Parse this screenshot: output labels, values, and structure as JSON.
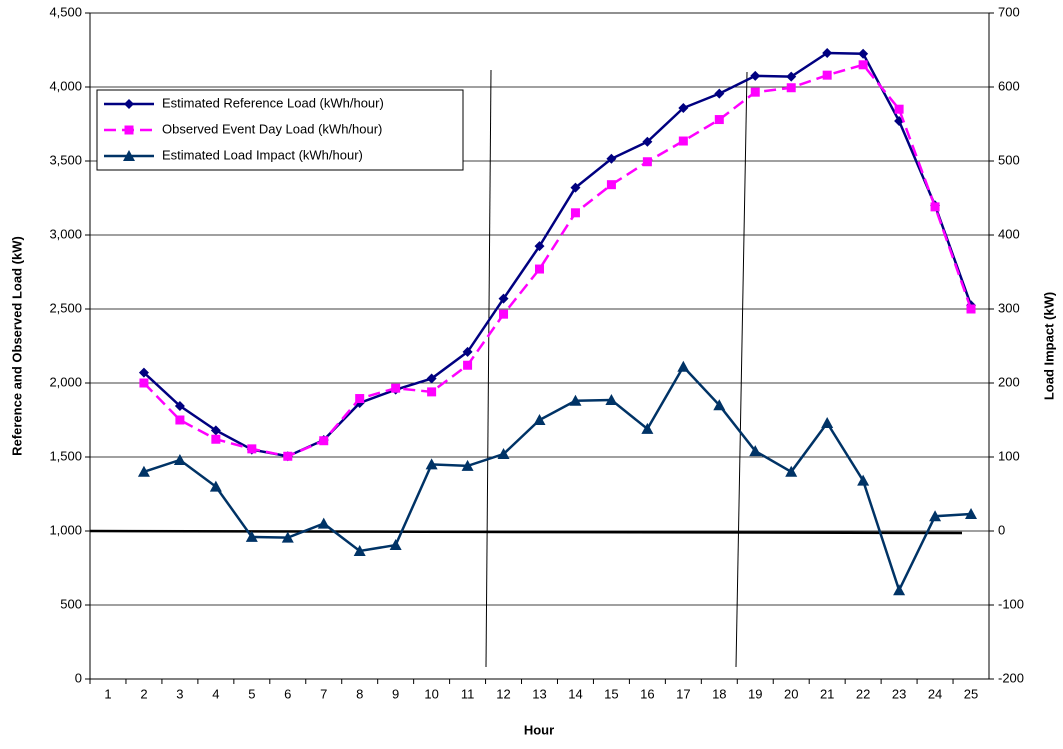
{
  "chart_data": {
    "type": "line",
    "categories": [
      "1",
      "2",
      "3",
      "4",
      "5",
      "6",
      "7",
      "8",
      "9",
      "10",
      "11",
      "12",
      "13",
      "14",
      "15",
      "16",
      "17",
      "18",
      "19",
      "20",
      "21",
      "22",
      "23",
      "24",
      "25"
    ],
    "x_label": "Hour",
    "y_label": "Reference and Observed Load (kW)",
    "y2_label": "Load Impact (kW)",
    "ylim": [
      0,
      4500
    ],
    "yticks": [
      0,
      500,
      {
        "value": 1000,
        "label": "1,000"
      },
      {
        "value": 1500,
        "label": "1,500"
      },
      {
        "value": 2000,
        "label": "2,000"
      },
      {
        "value": 2500,
        "label": "2,500"
      },
      {
        "value": 3000,
        "label": "3,000"
      },
      {
        "value": 3500,
        "label": "3,500"
      },
      {
        "value": 4000,
        "label": "4,000"
      },
      {
        "value": 4500,
        "label": "4,500"
      }
    ],
    "y2lim": [
      -200,
      700
    ],
    "y2ticks": [
      -200,
      -100,
      0,
      100,
      200,
      300,
      400,
      500,
      600,
      700
    ],
    "grid": true,
    "legend": "upper left",
    "series": [
      {
        "name": "Estimated Reference Load (kWh/hour)",
        "color": "#000080",
        "marker": "diamond",
        "values": [
          null,
          2070,
          1845,
          1680,
          1550,
          1505,
          1615,
          1865,
          1955,
          2030,
          2210,
          2570,
          2925,
          3320,
          3515,
          3630,
          3858,
          3955,
          4075,
          4070,
          4230,
          4225,
          3770,
          3200,
          2525
        ]
      },
      {
        "name": "Observed Event Day Load (kWh/hour)",
        "color": "#FF00FF",
        "marker": "square",
        "dashed": true,
        "values": [
          null,
          2000,
          1750,
          1620,
          1555,
          1505,
          1610,
          1895,
          1965,
          1940,
          2120,
          2465,
          2770,
          3150,
          3340,
          3495,
          3635,
          3780,
          3965,
          3995,
          4080,
          4150,
          3850,
          3190,
          2500
        ]
      },
      {
        "name": "Estimated Load Impact (kWh/hour)",
        "color": "#003366",
        "marker": "triangle",
        "axis": "y2",
        "values": [
          null,
          80,
          96,
          60,
          -8,
          -9,
          10,
          -27,
          -19,
          90,
          88,
          104,
          150,
          176,
          177,
          138,
          222,
          170,
          108,
          80,
          146,
          68,
          -80,
          20,
          23
        ]
      }
    ]
  }
}
